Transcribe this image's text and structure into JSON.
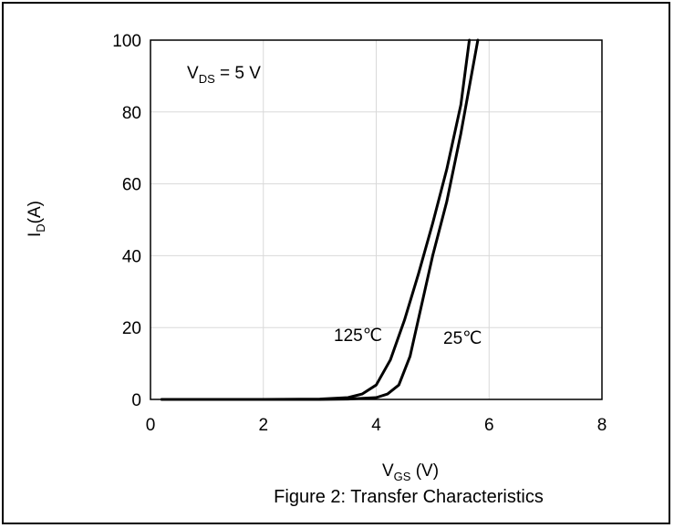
{
  "chart_data": {
    "type": "line",
    "caption": "Figure 2: Transfer Characteristics",
    "xlabel": {
      "main": "V",
      "sub": "GS",
      "suffix": " (V)"
    },
    "ylabel": {
      "main": "I",
      "sub": "D",
      "suffix": "(A)"
    },
    "annotation": {
      "main": "V",
      "sub": "DS",
      "suffix": " = 5 V"
    },
    "xlim": [
      0,
      8
    ],
    "ylim": [
      0,
      100
    ],
    "x_ticks": [
      0,
      2,
      4,
      6,
      8
    ],
    "y_ticks": [
      0,
      20,
      40,
      60,
      80,
      100
    ],
    "grid": true,
    "series": [
      {
        "name": "125℃",
        "color": "#000000",
        "points": [
          [
            0.2,
            0
          ],
          [
            2.0,
            0
          ],
          [
            3.0,
            0.1
          ],
          [
            3.5,
            0.5
          ],
          [
            3.75,
            1.5
          ],
          [
            4.0,
            4.0
          ],
          [
            4.25,
            11.0
          ],
          [
            4.5,
            22.0
          ],
          [
            4.75,
            35.0
          ],
          [
            5.0,
            49.0
          ],
          [
            5.25,
            64.0
          ],
          [
            5.5,
            82.0
          ],
          [
            5.65,
            100.0
          ]
        ]
      },
      {
        "name": "25℃",
        "color": "#000000",
        "points": [
          [
            0.2,
            0
          ],
          [
            3.0,
            0
          ],
          [
            3.5,
            0.1
          ],
          [
            4.0,
            0.5
          ],
          [
            4.2,
            1.5
          ],
          [
            4.4,
            4.0
          ],
          [
            4.6,
            12.0
          ],
          [
            4.8,
            26.0
          ],
          [
            5.0,
            40.0
          ],
          [
            5.25,
            55.0
          ],
          [
            5.5,
            74.0
          ],
          [
            5.8,
            100.0
          ]
        ]
      }
    ]
  }
}
